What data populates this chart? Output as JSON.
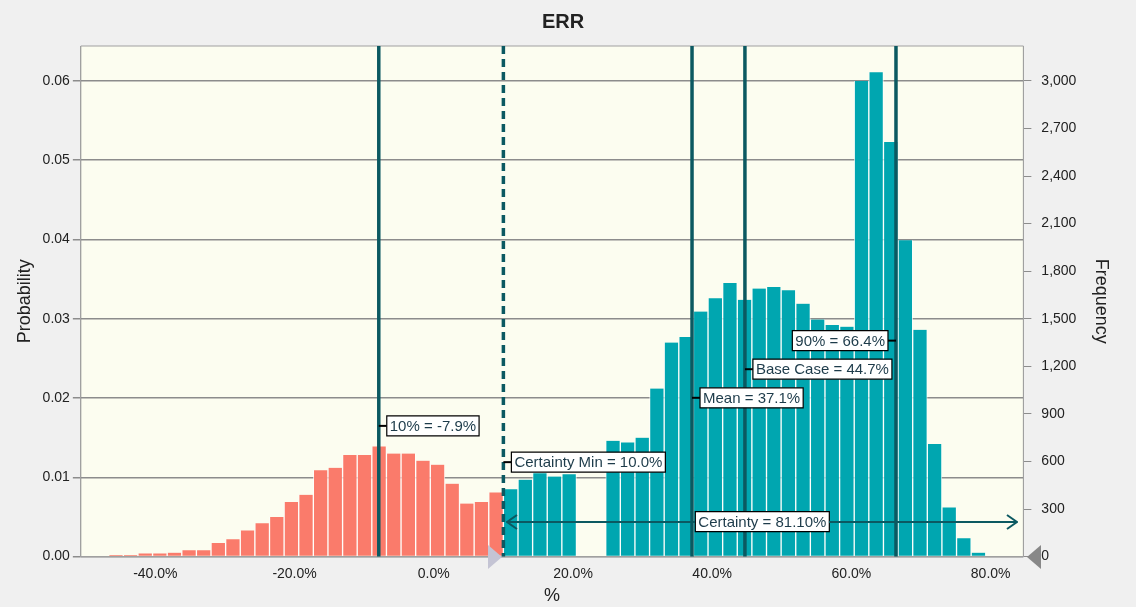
{
  "chart_data": {
    "type": "histogram",
    "title": "ERR",
    "xlabel": "%",
    "ylabel": "Probability",
    "y2label": "Frequency",
    "bins": [
      -46.7,
      -44.6,
      -42.5,
      -40.4,
      -38.3,
      -36.2,
      -34.1,
      -32,
      -29.9,
      -27.8,
      -25.7,
      -23.6,
      -21.5,
      -19.4,
      -17.3,
      -15.2,
      -13.1,
      -11,
      -8.9,
      -6.8,
      -4.7,
      -2.6,
      -0.5,
      1.6,
      3.7,
      5.8,
      7.9,
      10,
      12.1,
      14.2,
      16.3,
      18.4,
      20.5,
      22.6,
      24.7,
      26.8,
      28.9,
      31,
      33.1,
      35.2,
      37.3,
      39.4,
      41.5,
      43.6,
      45.7,
      47.8,
      49.9,
      52,
      54.1,
      56.2,
      58.3,
      60.4,
      62.5,
      64.6,
      66.7,
      68.8,
      70.9,
      73,
      75.1,
      77.2,
      79.3
    ],
    "values": [
      0.0002,
      0.0002,
      0.0004,
      0.0004,
      0.0005,
      0.0008,
      0.0008,
      0.0017,
      0.0022,
      0.0033,
      0.0042,
      0.005,
      0.0069,
      0.0078,
      0.0109,
      0.0112,
      0.0128,
      0.0128,
      0.0139,
      0.013,
      0.013,
      0.0121,
      0.0116,
      0.0092,
      0.0067,
      0.0069,
      0.0081,
      0.0085,
      0.0097,
      0.0105,
      0.0101,
      0.0104,
      null,
      null,
      0.0146,
      0.0144,
      0.015,
      0.0212,
      0.027,
      0.0277,
      0.0309,
      0.0326,
      0.0345,
      0.0324,
      0.0338,
      0.034,
      0.0336,
      0.0319,
      0.0299,
      0.0292,
      0.029,
      0.06,
      0.0611,
      0.0523,
      0.0399,
      0.0286,
      0.0142,
      0.0062,
      0.0023,
      0.0005
    ],
    "colors": [
      "#fa7b6b",
      "#fa7b6b",
      "#fa7b6b",
      "#fa7b6b",
      "#fa7b6b",
      "#fa7b6b",
      "#fa7b6b",
      "#fa7b6b",
      "#fa7b6b",
      "#fa7b6b",
      "#fa7b6b",
      "#fa7b6b",
      "#fa7b6b",
      "#fa7b6b",
      "#fa7b6b",
      "#fa7b6b",
      "#fa7b6b",
      "#fa7b6b",
      "#fa7b6b",
      "#fa7b6b",
      "#fa7b6b",
      "#fa7b6b",
      "#fa7b6b",
      "#fa7b6b",
      "#fa7b6b",
      "#fa7b6b",
      "#fa7b6b",
      "#00a6b0",
      "#00a6b0",
      "#00a6b0",
      "#00a6b0",
      "#00a6b0",
      "#00a6b0",
      "#00a6b0",
      "#00a6b0",
      "#00a6b0",
      "#00a6b0",
      "#00a6b0",
      "#00a6b0",
      "#00a6b0",
      "#00a6b0",
      "#00a6b0",
      "#00a6b0",
      "#00a6b0",
      "#00a6b0",
      "#00a6b0",
      "#00a6b0",
      "#00a6b0",
      "#00a6b0",
      "#00a6b0",
      "#00a6b0",
      "#00a6b0",
      "#00a6b0",
      "#00a6b0",
      "#00a6b0",
      "#00a6b0",
      "#00a6b0",
      "#00a6b0",
      "#00a6b0",
      "#00a6b0"
    ],
    "xlim": [
      -50.7,
      84.7
    ],
    "xticks": [
      {
        "value": -40,
        "label": "-40.0%"
      },
      {
        "value": -20,
        "label": "-20.0%"
      },
      {
        "value": 0,
        "label": "0.0%"
      },
      {
        "value": 20,
        "label": "20.0%"
      },
      {
        "value": 40,
        "label": "40.0%"
      },
      {
        "value": 60,
        "label": "60.0%"
      },
      {
        "value": 80,
        "label": "80.0%"
      }
    ],
    "ylim": [
      0,
      0.0644
    ],
    "yticks": [
      {
        "value": 0,
        "label": "0.00"
      },
      {
        "value": 0.01,
        "label": "0.01"
      },
      {
        "value": 0.02,
        "label": "0.02"
      },
      {
        "value": 0.03,
        "label": "0.03"
      },
      {
        "value": 0.04,
        "label": "0.04"
      },
      {
        "value": 0.05,
        "label": "0.05"
      },
      {
        "value": 0.06,
        "label": "0.06"
      }
    ],
    "y2lim": [
      0,
      3220
    ],
    "y2ticks": [
      0,
      300,
      600,
      900,
      {
        "value": 1200,
        "label": "1,200"
      },
      {
        "value": 1500,
        "label": "1,500"
      },
      {
        "value": 1800,
        "label": "1,800"
      },
      {
        "value": 2100,
        "label": "2,100"
      },
      {
        "value": 2400,
        "label": "2,400"
      },
      {
        "value": 2700,
        "label": "2,700"
      },
      {
        "value": 3000,
        "label": "3,000"
      }
    ],
    "ref_lines": [
      {
        "axis": "x",
        "value": -7.9,
        "label": "10% = -7.9%",
        "color": "#0b5961",
        "line_style": "solid"
      },
      {
        "axis": "x",
        "value": 10,
        "label": "Certainty Min = 10.0%",
        "color": "#0b5961",
        "line_style": "dashed"
      },
      {
        "axis": "x",
        "value": 37.1,
        "label": "Mean = 37.1%",
        "color": "#0b5961",
        "line_style": "solid"
      },
      {
        "axis": "x",
        "value": 44.7,
        "label": "Base Case = 44.7%",
        "color": "#0b5961",
        "line_style": "solid"
      },
      {
        "axis": "x",
        "value": 66.4,
        "label": "90% = 66.4%",
        "color": "#0b5961",
        "line_style": "solid"
      }
    ],
    "annotations": [
      {
        "text": "Certainty = 81.10%",
        "x": 47.2,
        "y": 0.0044
      }
    ],
    "grid": "y",
    "legend": false
  }
}
